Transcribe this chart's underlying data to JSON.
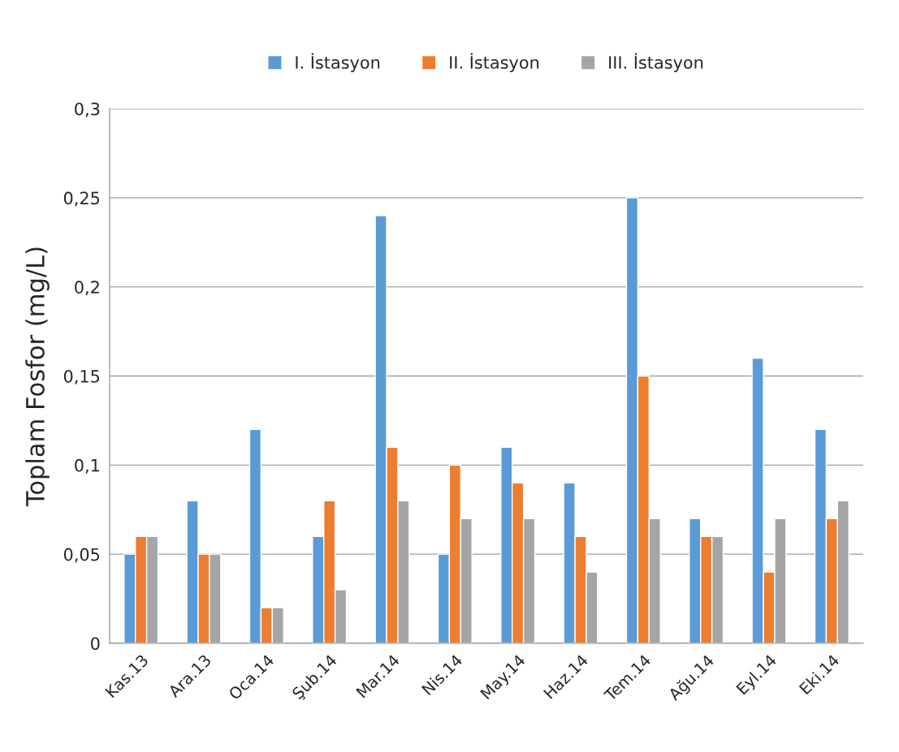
{
  "chart_data": {
    "type": "bar",
    "ylabel": "Toplam Fosfor (mg/L)",
    "categories": [
      "Kas.13",
      "Ara.13",
      "Oca.14",
      "Şub.14",
      "Mar.14",
      "Nis.14",
      "May.14",
      "Haz.14",
      "Tem.14",
      "Ağu.14",
      "Eyl.14",
      "Eki.14"
    ],
    "series": [
      {
        "name": "I. İstasyon",
        "color": "#5b9bd5",
        "values": [
          0.05,
          0.08,
          0.12,
          0.06,
          0.24,
          0.05,
          0.11,
          0.09,
          0.25,
          0.07,
          0.16,
          0.12
        ]
      },
      {
        "name": "II. İstasyon",
        "color": "#ed7d31",
        "values": [
          0.06,
          0.05,
          0.02,
          0.08,
          0.11,
          0.1,
          0.09,
          0.06,
          0.15,
          0.06,
          0.04,
          0.07
        ]
      },
      {
        "name": "III. İstasyon",
        "color": "#a5a5a5",
        "values": [
          0.06,
          0.05,
          0.02,
          0.03,
          0.08,
          0.07,
          0.07,
          0.04,
          0.07,
          0.06,
          0.07,
          0.08
        ]
      }
    ],
    "ylim": [
      0,
      0.3
    ],
    "yticks": [
      {
        "value": 0,
        "label": "0"
      },
      {
        "value": 0.05,
        "label": "0,05"
      },
      {
        "value": 0.1,
        "label": "0,1"
      },
      {
        "value": 0.15,
        "label": "0,15"
      },
      {
        "value": 0.2,
        "label": "0,2"
      },
      {
        "value": 0.25,
        "label": "0,25"
      },
      {
        "value": 0.3,
        "label": "0,3"
      }
    ],
    "grid": "y",
    "legend": "top"
  }
}
